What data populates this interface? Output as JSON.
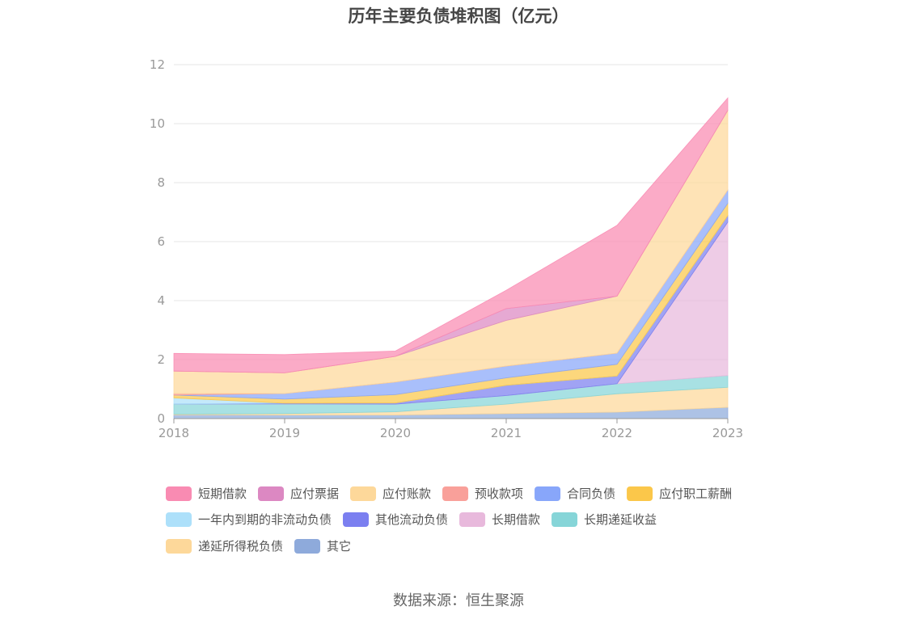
{
  "chart_data": {
    "type": "area",
    "stacked": true,
    "title": "历年主要负债堆积图（亿元）",
    "x": [
      "2018",
      "2019",
      "2020",
      "2021",
      "2022",
      "2023"
    ],
    "ylim": [
      0,
      12
    ],
    "yticks": [
      0,
      2,
      4,
      6,
      8,
      10,
      12
    ],
    "grid": true,
    "legend_position": "bottom",
    "series": [
      {
        "name": "其它",
        "color": "#8eaadb",
        "values": [
          0.13,
          0.12,
          0.12,
          0.17,
          0.22,
          0.38
        ]
      },
      {
        "name": "递延所得税负债",
        "color": "#fdd89a",
        "values": [
          0.02,
          0.05,
          0.11,
          0.32,
          0.62,
          0.68
        ]
      },
      {
        "name": "长期递延收益",
        "color": "#86d5d8",
        "values": [
          0.35,
          0.33,
          0.26,
          0.29,
          0.34,
          0.4
        ]
      },
      {
        "name": "长期借款",
        "color": "#e8b9dc",
        "values": [
          0,
          0,
          0,
          0,
          0,
          5.2
        ]
      },
      {
        "name": "其他流动负债",
        "color": "#7b7ff0",
        "values": [
          0,
          0.02,
          0.04,
          0.35,
          0.26,
          0.22
        ]
      },
      {
        "name": "一年内到期的非流动负债",
        "color": "#ade0fa",
        "values": [
          0.2,
          0,
          0,
          0,
          0,
          0
        ]
      },
      {
        "name": "应付职工薪酬",
        "color": "#fbc74a",
        "values": [
          0.1,
          0.14,
          0.28,
          0.25,
          0.4,
          0.42
        ]
      },
      {
        "name": "合同负债",
        "color": "#88a6fa",
        "values": [
          0,
          0.19,
          0.43,
          0.4,
          0.38,
          0.45
        ]
      },
      {
        "name": "预收款项",
        "color": "#f9a09a",
        "values": [
          0.05,
          0,
          0,
          0,
          0,
          0
        ]
      },
      {
        "name": "应付账款",
        "color": "#fdd89a",
        "values": [
          0.76,
          0.7,
          0.87,
          1.55,
          1.93,
          2.7
        ]
      },
      {
        "name": "应付票据",
        "color": "#dc88c2",
        "values": [
          0,
          0,
          0,
          0.4,
          0,
          0
        ]
      },
      {
        "name": "短期借款",
        "color": "#f98bb2",
        "values": [
          0.6,
          0.62,
          0.18,
          0.62,
          2.4,
          0.42
        ]
      }
    ],
    "legend_order": [
      "短期借款",
      "应付票据",
      "应付账款",
      "预收款项",
      "合同负债",
      "应付职工薪酬",
      "一年内到期的非流动负债",
      "其他流动负债",
      "长期借款",
      "长期递延收益",
      "递延所得税负债",
      "其它"
    ]
  },
  "source": "数据来源：恒生聚源"
}
